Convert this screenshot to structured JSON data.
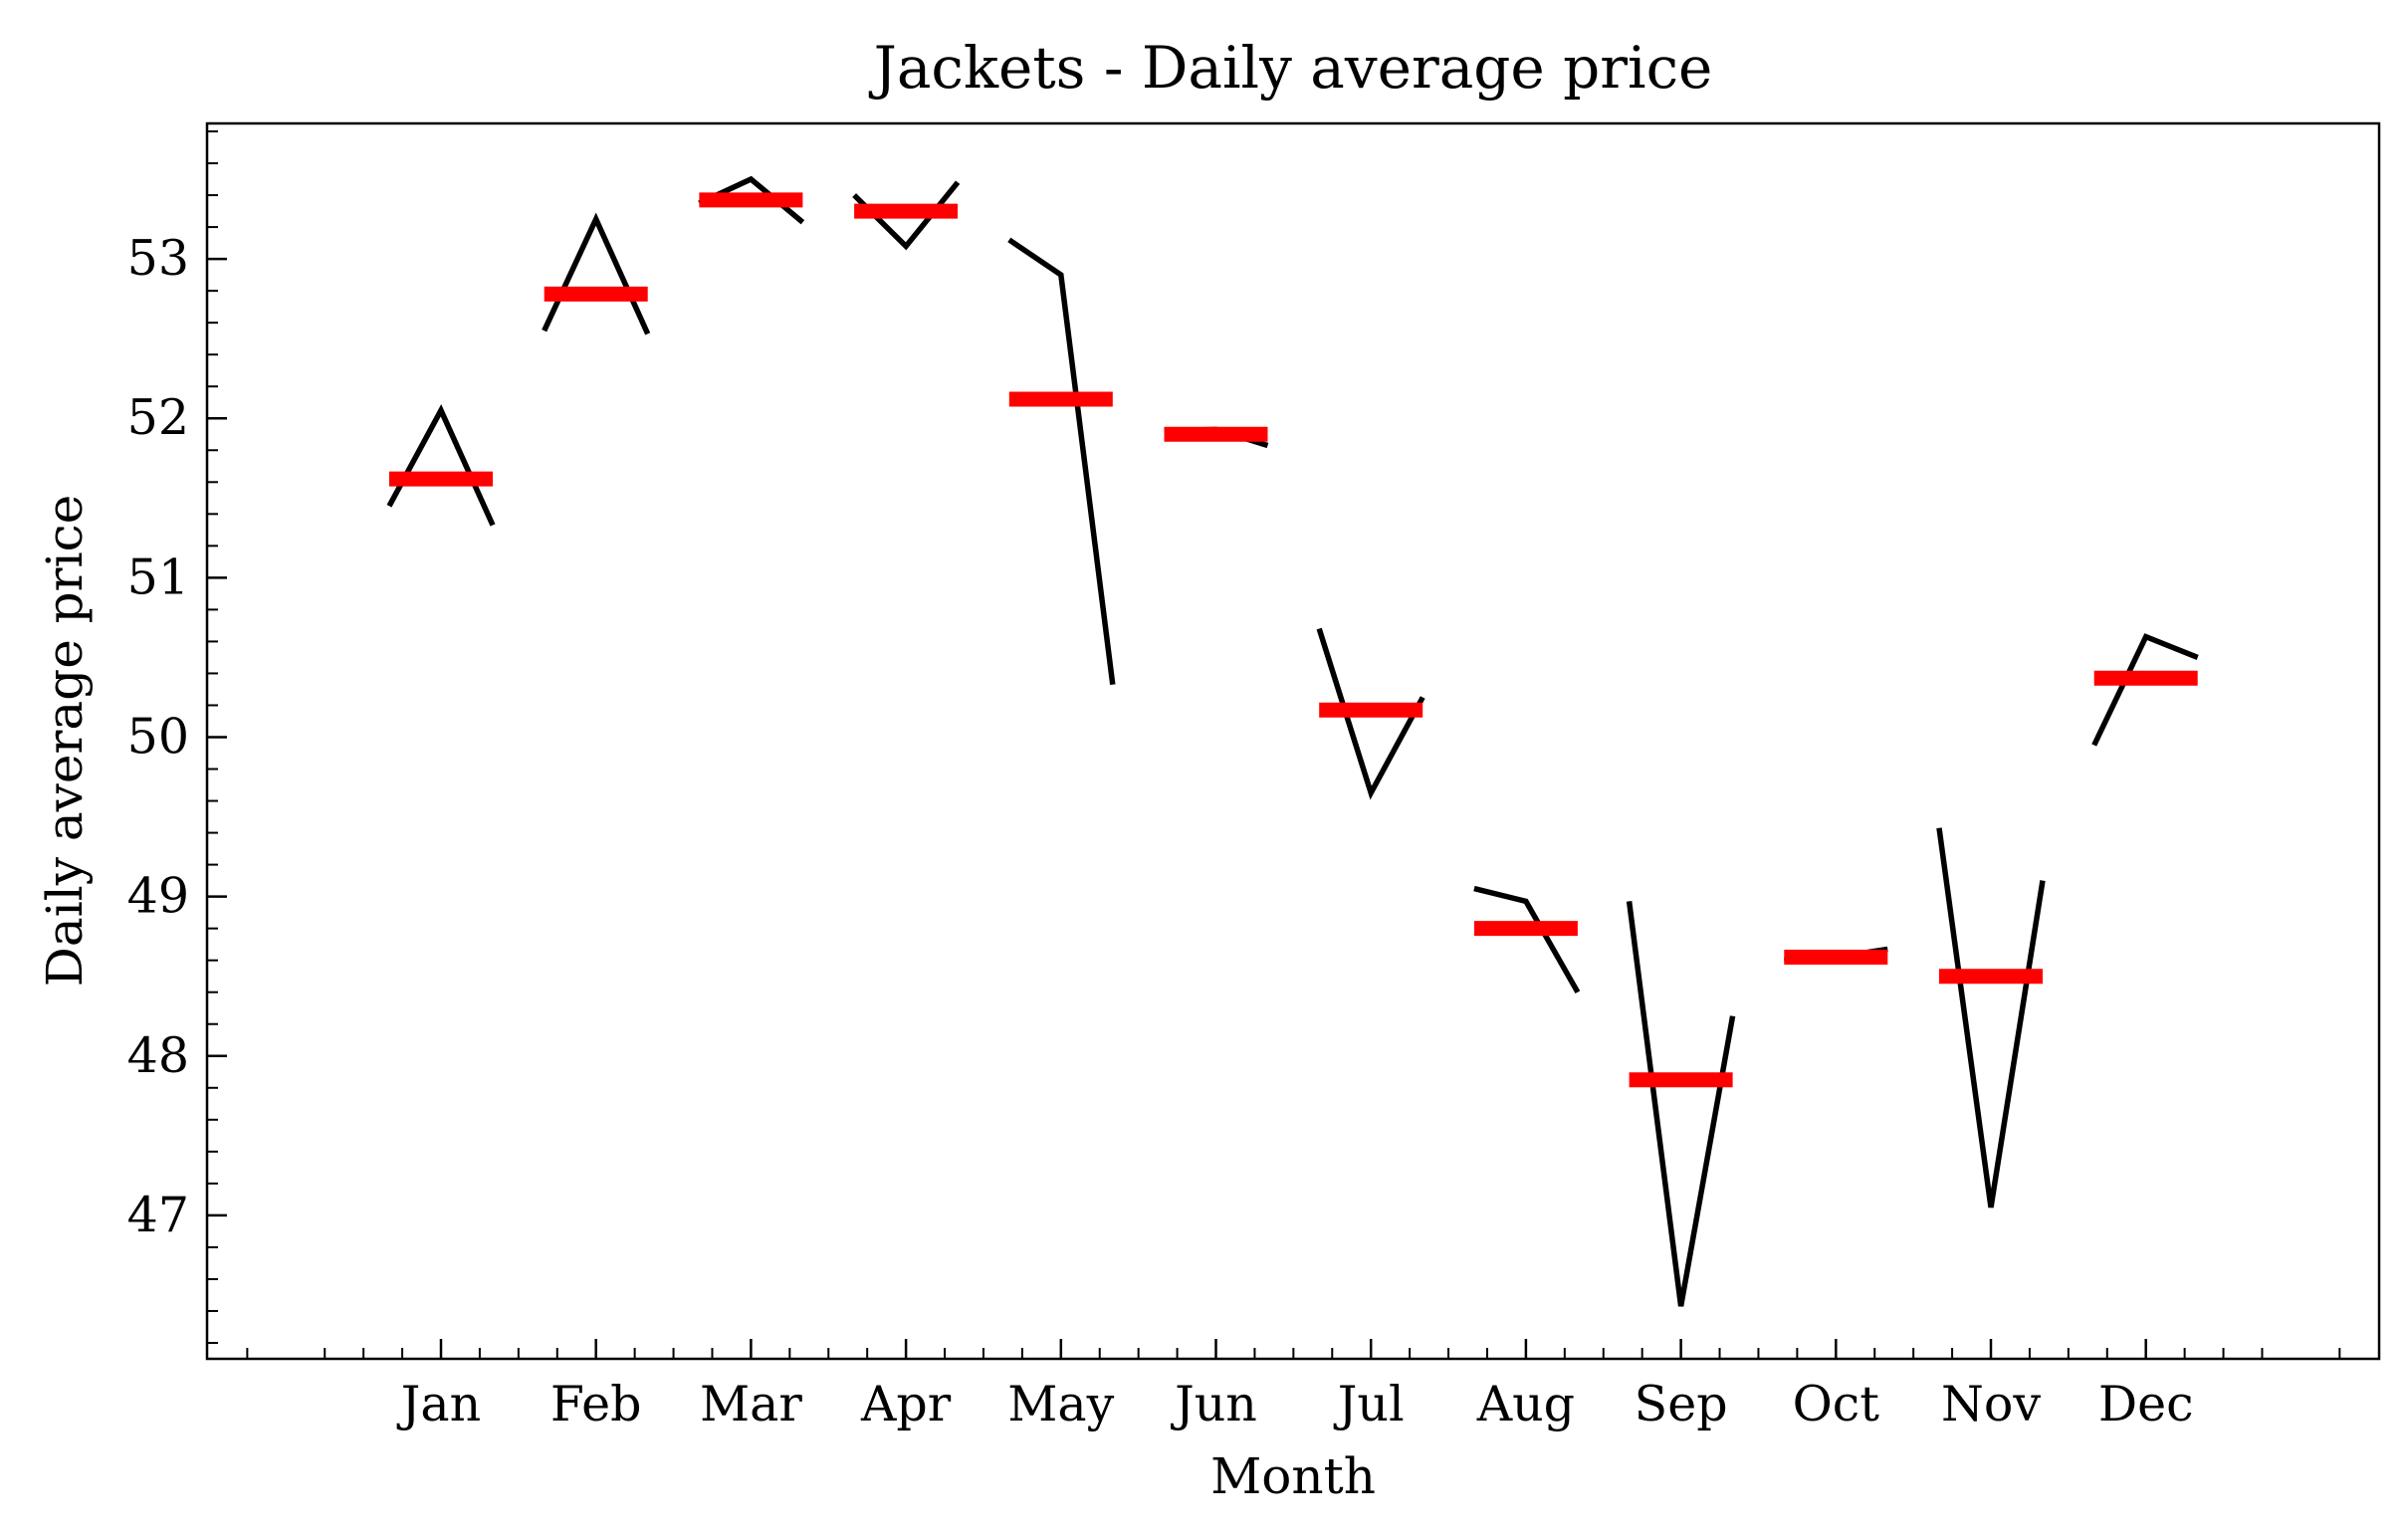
{
  "chart_data": {
    "type": "line",
    "title": "Jackets - Daily average price",
    "xlabel": "Month",
    "ylabel": "Daily average price",
    "categories": [
      "Jan",
      "Feb",
      "Mar",
      "Apr",
      "May",
      "Jun",
      "Jul",
      "Aug",
      "Sep",
      "Oct",
      "Nov",
      "Dec"
    ],
    "ylim": [
      46.1,
      53.85
    ],
    "yticks": [
      47,
      48,
      49,
      50,
      51,
      52,
      53
    ],
    "grid": false,
    "series": [
      {
        "color": "#000000",
        "values": [
          [
            51.45,
            52.05,
            51.33
          ],
          [
            52.55,
            53.25,
            52.53
          ],
          [
            53.35,
            53.5,
            53.23
          ],
          [
            53.4,
            53.08,
            53.48
          ],
          [
            53.12,
            52.9,
            50.33
          ],
          [
            51.92,
            51.93,
            51.83
          ],
          [
            50.68,
            49.65,
            50.25
          ],
          [
            49.05,
            48.97,
            48.4
          ],
          [
            48.97,
            46.43,
            48.25
          ],
          [
            48.6,
            48.62,
            48.67
          ],
          [
            49.43,
            47.05,
            49.1
          ],
          [
            49.95,
            50.63,
            50.5
          ]
        ]
      },
      {
        "color": "#ff0000",
        "values": [
          51.62,
          52.78,
          53.37,
          53.3,
          52.12,
          51.9,
          50.17,
          48.8,
          47.85,
          48.62,
          48.5,
          50.37
        ]
      }
    ]
  }
}
